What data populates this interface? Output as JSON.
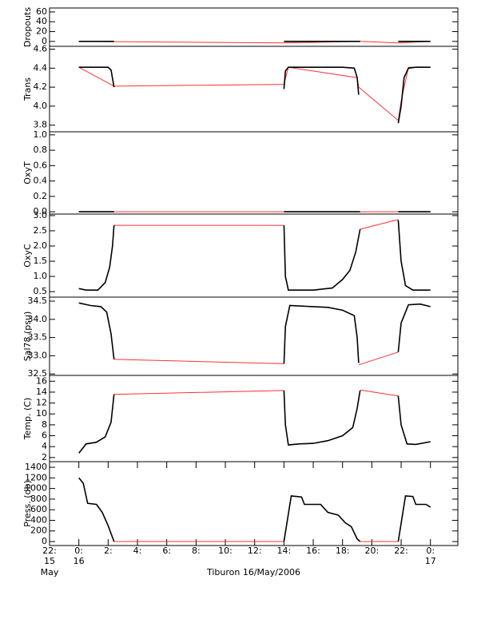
{
  "chart_data": [
    {
      "type": "line",
      "ylabel": "Dropouts",
      "xlim": [
        -2,
        25.87
      ],
      "ylim": [
        -10,
        68
      ],
      "yticks": [
        0,
        20,
        40,
        60
      ],
      "series": [
        {
          "color": "#ff3030",
          "x": [
            0,
            14,
            19.2,
            21.8,
            24
          ],
          "values": [
            0,
            -3,
            0,
            -3,
            0
          ]
        },
        {
          "color": "#000000",
          "x": [
            0,
            2.4,
            8,
            14,
            19.2,
            20.5,
            21.8,
            24
          ],
          "values": [
            0,
            0,
            null,
            0,
            0,
            null,
            0,
            0
          ]
        }
      ]
    },
    {
      "type": "line",
      "ylabel": "Trans",
      "xlim": [
        -2,
        25.87
      ],
      "ylim": [
        3.73,
        4.63
      ],
      "yticks": [
        3.8,
        {
          "value": 4,
          "label": "4.0"
        },
        4.2,
        4.4,
        4.6
      ],
      "series": [
        {
          "color": "#ff3030",
          "x": [
            0,
            2.4,
            14,
            14.3,
            19,
            19.1,
            21.8,
            22,
            22.5,
            24
          ],
          "values": [
            4.41,
            4.21,
            4.23,
            4.41,
            4.3,
            4.2,
            3.85,
            4.05,
            4.41,
            4.41
          ]
        },
        {
          "color": "#000000",
          "x": [
            0,
            1,
            2,
            2.2,
            2.4,
            8,
            14,
            14.1,
            14.3,
            16,
            18,
            18.8,
            19,
            19.1,
            20.5,
            21.8,
            22,
            22.2,
            22.5,
            23,
            24
          ],
          "values": [
            4.41,
            4.41,
            4.41,
            4.38,
            4.2,
            null,
            4.18,
            4.37,
            4.41,
            4.41,
            4.41,
            4.4,
            4.3,
            4.12,
            null,
            3.82,
            4,
            4.3,
            4.4,
            4.41,
            4.41
          ]
        }
      ]
    },
    {
      "type": "line",
      "ylabel": "OxyT",
      "xlim": [
        -2,
        25.87
      ],
      "ylim": [
        -0.03,
        1.04
      ],
      "yticks": [
        {
          "value": 0,
          "label": "0.0"
        },
        0.2,
        0.4,
        0.6,
        0.8,
        {
          "value": 1,
          "label": "1.0"
        }
      ],
      "series": [
        {
          "color": "#ff3030",
          "x": [
            0,
            24
          ],
          "values": [
            0,
            0
          ]
        },
        {
          "color": "#000000",
          "x": [
            0,
            2.4,
            8,
            14,
            19.2,
            20.5,
            21.8,
            24
          ],
          "values": [
            0,
            0,
            null,
            0,
            0,
            null,
            0,
            0
          ]
        }
      ]
    },
    {
      "type": "line",
      "ylabel": "OxyC",
      "xlim": [
        -2,
        25.87
      ],
      "ylim": [
        0.32,
        3.05
      ],
      "yticks": [
        0.5,
        {
          "value": 1,
          "label": "1.0"
        },
        1.5,
        {
          "value": 2,
          "label": "2.0"
        },
        2.5,
        {
          "value": 3,
          "label": "3.0"
        }
      ],
      "series": [
        {
          "color": "#ff3030",
          "x": [
            2.4,
            14,
            17,
            19.2,
            21.8
          ],
          "values": [
            2.68,
            2.68,
            null,
            2.55,
            2.87
          ]
        },
        {
          "color": "#000000",
          "x": [
            0,
            0.5,
            1.3,
            1.8,
            2.1,
            2.3,
            2.4,
            8,
            14,
            14.1,
            14.3,
            16,
            17.3,
            18,
            18.5,
            18.9,
            19.2,
            20.5,
            21.8,
            22,
            22.3,
            22.8,
            24
          ],
          "values": [
            0.6,
            0.55,
            0.55,
            0.8,
            1.3,
            2,
            2.68,
            null,
            2.68,
            1,
            0.55,
            0.55,
            0.62,
            0.9,
            1.2,
            1.8,
            2.55,
            null,
            2.85,
            1.5,
            0.7,
            0.55,
            0.55
          ]
        }
      ]
    },
    {
      "type": "line",
      "ylabel": "Sal78 (psu)",
      "xlim": [
        -2,
        25.87
      ],
      "ylim": [
        32.46,
        34.61
      ],
      "yticks": [
        32.5,
        {
          "value": 33,
          "label": "33.0"
        },
        33.5,
        {
          "value": 34,
          "label": "34.0"
        },
        34.5
      ],
      "series": [
        {
          "color": "#ff3030",
          "x": [
            2.4,
            14,
            17,
            19.1,
            21.8
          ],
          "values": [
            32.9,
            32.78,
            null,
            32.75,
            33.1
          ]
        },
        {
          "color": "#000000",
          "x": [
            0,
            0.8,
            1.5,
            1.9,
            2.2,
            2.4,
            8,
            14,
            14.1,
            14.4,
            16,
            17,
            18,
            18.8,
            19,
            19.1,
            20.5,
            21.8,
            22,
            22.5,
            23.3,
            24
          ],
          "values": [
            34.45,
            34.38,
            34.35,
            34.2,
            33.6,
            32.9,
            null,
            32.78,
            33.8,
            34.38,
            34.35,
            34.33,
            34.25,
            34.1,
            33.5,
            32.8,
            null,
            33.1,
            33.9,
            34.4,
            34.42,
            34.35
          ]
        }
      ]
    },
    {
      "type": "line",
      "ylabel": "Temp. (C)",
      "xlim": [
        -2,
        25.87
      ],
      "ylim": [
        1.24,
        17.07
      ],
      "yticks": [
        2,
        4,
        6,
        8,
        10,
        12,
        14,
        16
      ],
      "series": [
        {
          "color": "#ff3030",
          "x": [
            2.4,
            14,
            17,
            19.2,
            21.8
          ],
          "values": [
            13.6,
            14.3,
            null,
            14.4,
            13.3
          ]
        },
        {
          "color": "#000000",
          "x": [
            0,
            0.5,
            1.2,
            1.8,
            2.2,
            2.4,
            8,
            14,
            14.1,
            14.3,
            15,
            16,
            17,
            18,
            18.7,
            19,
            19.2,
            20.5,
            21.8,
            22,
            22.4,
            23,
            24
          ],
          "values": [
            2.8,
            4.5,
            4.8,
            5.8,
            8.5,
            13.6,
            null,
            14.3,
            8,
            4.3,
            4.5,
            4.6,
            5.1,
            6,
            7.5,
            11,
            14.3,
            null,
            13.3,
            8,
            4.5,
            4.4,
            4.9
          ]
        }
      ]
    },
    {
      "type": "line",
      "ylabel": "Press. (db)",
      "xlabel": "Tiburon 16/May/2006",
      "xlim": [
        -2,
        25.87
      ],
      "ylim": [
        -75,
        1506
      ],
      "yticks": [
        0,
        200,
        400,
        600,
        800,
        1000,
        1200,
        1400
      ],
      "xticks": [
        {
          "value": -2,
          "label": "22:"
        },
        {
          "value": 0,
          "label": "0:"
        },
        {
          "value": 2,
          "label": "2:"
        },
        {
          "value": 4,
          "label": "4:"
        },
        {
          "value": 6,
          "label": "6:"
        },
        {
          "value": 8,
          "label": "8:"
        },
        {
          "value": 10,
          "label": "10:"
        },
        {
          "value": 12,
          "label": "12:"
        },
        {
          "value": 14,
          "label": "14:"
        },
        {
          "value": 16,
          "label": "16:"
        },
        {
          "value": 18,
          "label": "18:"
        },
        {
          "value": 20,
          "label": "20:"
        },
        {
          "value": 22,
          "label": "22:"
        },
        {
          "value": 24,
          "label": "0:"
        }
      ],
      "xtick_sublabels": [
        {
          "value": -2,
          "lines": [
            "15",
            "May"
          ]
        },
        {
          "value": 0,
          "lines": [
            "16"
          ]
        },
        {
          "value": 24,
          "lines": [
            "17"
          ]
        }
      ],
      "series": [
        {
          "color": "#ff3030",
          "x": [
            2.4,
            14,
            17,
            19.2,
            21.8
          ],
          "values": [
            0,
            0,
            null,
            0,
            0
          ]
        },
        {
          "color": "#000000",
          "x": [
            0,
            0.3,
            0.6,
            1.2,
            1.6,
            2,
            2.4,
            8,
            14,
            14.5,
            15.2,
            15.4,
            16.5,
            17,
            17.7,
            18.2,
            18.6,
            19,
            19.2,
            20.5,
            21.8,
            22.3,
            22.8,
            23,
            23.7,
            24
          ],
          "values": [
            1200,
            1100,
            720,
            700,
            550,
            300,
            0,
            null,
            0,
            860,
            840,
            700,
            700,
            550,
            500,
            350,
            280,
            50,
            0,
            null,
            0,
            860,
            850,
            700,
            700,
            650
          ]
        }
      ]
    }
  ]
}
